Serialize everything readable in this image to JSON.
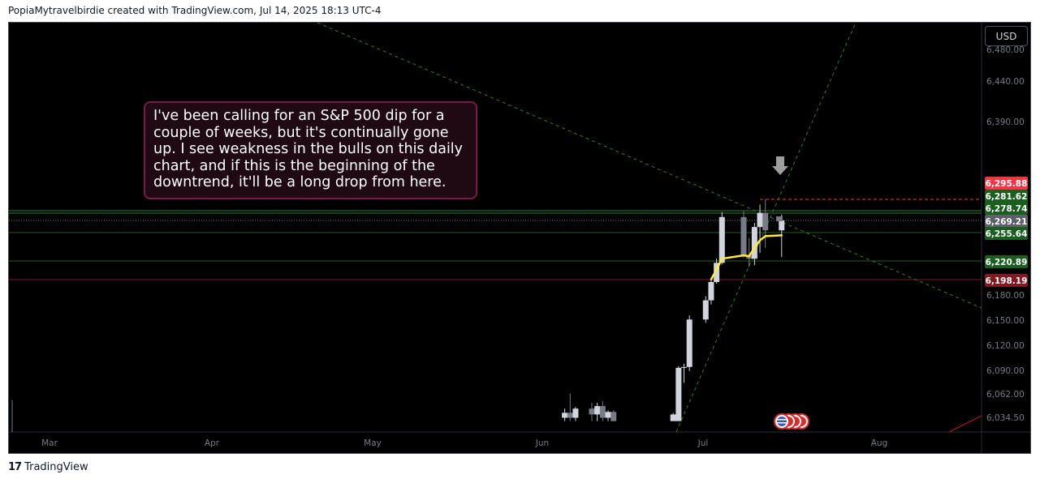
{
  "header": {
    "text": "PopiaMytravelbirdie created with TradingView.com, Jul 14, 2025 18:13 UTC-4"
  },
  "currency_button": "USD",
  "annotation": {
    "text": "I've been calling for an S&P 500 dip for a couple of weeks, but it's continually gone up. I see weakness in the bulls on this daily chart, and if this is the beginning of the downtrend, it'll be a long drop from here."
  },
  "footer": {
    "logo": "17",
    "brand": "TradingView"
  },
  "colors": {
    "background": "#000000",
    "bull_candle": "#d1d4dc",
    "bear_candle": "#787b86",
    "ma_line": "#ffeb3b",
    "support_line": "#2e7d32",
    "resistance_dashed": "#f23645",
    "trend_dashed": "#2e7d32",
    "label_red": "#f23645",
    "label_green": "#1b5e20",
    "label_gray": "#5d606b",
    "label_darkred": "#801922"
  },
  "chart_data": {
    "type": "candlestick",
    "title": "",
    "x_ticks": [
      "Mar",
      "Apr",
      "May",
      "Jun",
      "Jul",
      "Aug"
    ],
    "y_ticks": [
      "6,034.50",
      "6,062.00",
      "6,090.00",
      "6,120.00",
      "6,150.00",
      "6,180.00",
      "6,390.00",
      "6,440.00",
      "6,480.00"
    ],
    "ylim": [
      6020,
      6490
    ],
    "price_labels": [
      {
        "value": 6295.88,
        "text": "6,295.88",
        "style": "red"
      },
      {
        "value": 6281.62,
        "text": "6,281.62",
        "style": "green"
      },
      {
        "value": 6278.74,
        "text": "6,278.74",
        "style": "green"
      },
      {
        "value": 6269.21,
        "text": "6,269.21",
        "style": "gray"
      },
      {
        "value": 6255.64,
        "text": "6,255.64",
        "style": "green"
      },
      {
        "value": 6220.89,
        "text": "6,220.89",
        "style": "green"
      },
      {
        "value": 6198.19,
        "text": "6,198.19",
        "style": "darkred"
      }
    ],
    "horizontal_lines": [
      6281.62,
      6278.74,
      6255.64,
      6220.89,
      6198.19
    ],
    "candles": [
      {
        "date": "2025-06-04",
        "open": 6034,
        "high": 6045,
        "low": 6030,
        "close": 6040
      },
      {
        "date": "2025-06-05",
        "open": 6040,
        "high": 6063,
        "low": 6030,
        "close": 6034
      },
      {
        "date": "2025-06-06",
        "open": 6034,
        "high": 6047,
        "low": 6030,
        "close": 6045
      },
      {
        "date": "2025-06-09",
        "open": 6045,
        "high": 6052,
        "low": 6030,
        "close": 6038
      },
      {
        "date": "2025-06-10",
        "open": 6038,
        "high": 6052,
        "low": 6030,
        "close": 6048
      },
      {
        "date": "2025-06-11",
        "open": 6048,
        "high": 6054,
        "low": 6030,
        "close": 6034
      },
      {
        "date": "2025-06-12",
        "open": 6034,
        "high": 6043,
        "low": 6030,
        "close": 6041
      },
      {
        "date": "2025-06-13",
        "open": 6041,
        "high": 6043,
        "low": 6030,
        "close": 6030
      },
      {
        "date": "2025-06-24",
        "open": 6030,
        "high": 6040,
        "low": 6030,
        "close": 6038
      },
      {
        "date": "2025-06-25",
        "open": 6030,
        "high": 6096,
        "low": 6030,
        "close": 6094
      },
      {
        "date": "2025-06-26",
        "open": 6094,
        "high": 6099,
        "low": 6076,
        "close": 6095
      },
      {
        "date": "2025-06-27",
        "open": 6095,
        "high": 6157,
        "low": 6090,
        "close": 6152
      },
      {
        "date": "2025-06-30",
        "open": 6152,
        "high": 6180,
        "low": 6148,
        "close": 6175
      },
      {
        "date": "2025-07-01",
        "open": 6175,
        "high": 6200,
        "low": 6170,
        "close": 6197
      },
      {
        "date": "2025-07-02",
        "open": 6197,
        "high": 6225,
        "low": 6195,
        "close": 6220
      },
      {
        "date": "2025-07-03",
        "open": 6220,
        "high": 6281,
        "low": 6218,
        "close": 6275
      },
      {
        "date": "2025-07-07",
        "open": 6275,
        "high": 6282,
        "low": 6226,
        "close": 6229
      },
      {
        "date": "2025-07-08",
        "open": 6229,
        "high": 6250,
        "low": 6215,
        "close": 6225
      },
      {
        "date": "2025-07-09",
        "open": 6225,
        "high": 6268,
        "low": 6217,
        "close": 6263
      },
      {
        "date": "2025-07-10",
        "open": 6263,
        "high": 6290,
        "low": 6232,
        "close": 6280
      },
      {
        "date": "2025-07-11",
        "open": 6280,
        "high": 6296,
        "low": 6238,
        "close": 6259
      },
      {
        "date": "2025-07-14",
        "open": 6259,
        "high": 6278,
        "low": 6227,
        "close": 6271
      }
    ],
    "moving_average": [
      {
        "date": "2025-07-01",
        "value": 6200
      },
      {
        "date": "2025-07-02",
        "value": 6212
      },
      {
        "date": "2025-07-03",
        "value": 6225
      },
      {
        "date": "2025-07-07",
        "value": 6229
      },
      {
        "date": "2025-07-08",
        "value": 6228
      },
      {
        "date": "2025-07-09",
        "value": 6238
      },
      {
        "date": "2025-07-10",
        "value": 6247
      },
      {
        "date": "2025-07-11",
        "value": 6252
      },
      {
        "date": "2025-07-14",
        "value": 6253
      }
    ]
  }
}
